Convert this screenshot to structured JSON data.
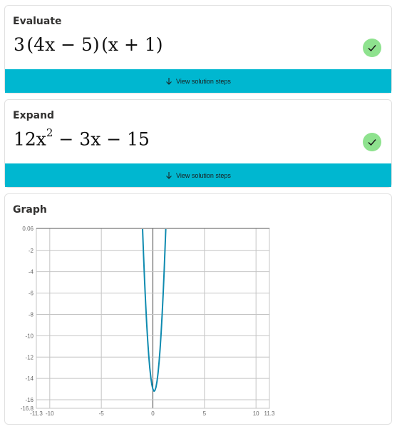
{
  "cards": [
    {
      "title": "Evaluate",
      "expression": {
        "coef": "3",
        "part1": "(4x − 5)",
        "part2": "(x + 1)"
      },
      "steps_label": "View solution steps"
    },
    {
      "title": "Expand",
      "expression": {
        "a": "12x",
        "exp": "2",
        "rest": " − 3x − 15"
      },
      "steps_label": "View solution steps"
    }
  ],
  "graph": {
    "title": "Graph"
  },
  "colors": {
    "accent": "#00b7d0",
    "check": "#8ee28e",
    "curve": "#0f8bb0"
  },
  "chart_data": {
    "type": "line",
    "function": "12x^2 - 3x - 15",
    "xlim": [
      -11.3,
      11.3
    ],
    "ylim": [
      -16.8,
      0.06
    ],
    "x_ticks": [
      -11.3,
      -10,
      -5,
      0,
      5,
      10,
      11.3
    ],
    "y_ticks": [
      0.06,
      -2,
      -4,
      -6,
      -8,
      -10,
      -12,
      -14,
      -16,
      -16.8
    ],
    "x_tick_labels": [
      "-11.3",
      "-10",
      "-5",
      "0",
      "5",
      "10",
      "11.3"
    ],
    "y_tick_labels": [
      "0.06",
      "-2",
      "-4",
      "-6",
      "-8",
      "-10",
      "-12",
      "-14",
      "-16",
      "-16.8"
    ],
    "grid": true,
    "series": [
      {
        "x": [
          -1.0,
          -0.9,
          -0.8,
          -0.7,
          -0.6,
          -0.5,
          -0.4,
          -0.3,
          -0.2,
          -0.1,
          0.0,
          0.1,
          0.125,
          0.2,
          0.3,
          0.4,
          0.5,
          0.6,
          0.7,
          0.8,
          0.9,
          1.0,
          1.1,
          1.25
        ],
        "y": [
          0.0,
          -2.58,
          -4.92,
          -7.02,
          -8.88,
          -10.5,
          -11.88,
          -13.02,
          -13.92,
          -14.58,
          -15.0,
          -15.18,
          -15.19,
          -15.12,
          -14.82,
          -14.28,
          -13.5,
          -12.48,
          -11.22,
          -9.72,
          -7.98,
          -6.0,
          -3.78,
          0.0
        ]
      }
    ]
  }
}
